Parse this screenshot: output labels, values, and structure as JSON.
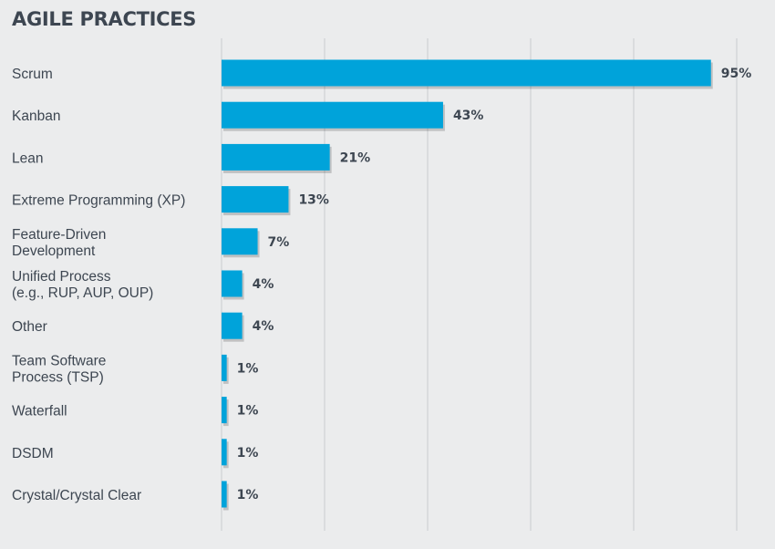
{
  "chart_data": {
    "type": "bar",
    "orientation": "horizontal",
    "title": "AGILE PRACTICES",
    "categories": [
      [
        "Scrum"
      ],
      [
        "Kanban"
      ],
      [
        "Lean"
      ],
      [
        "Extreme Programming (XP)"
      ],
      [
        "Feature-Driven",
        "Development"
      ],
      [
        "Unified Process",
        "(e.g., RUP, AUP, OUP)"
      ],
      [
        "Other"
      ],
      [
        "Team Software",
        "Process (TSP)"
      ],
      [
        "Waterfall"
      ],
      [
        "DSDM"
      ],
      [
        "Crystal/Crystal Clear"
      ]
    ],
    "values": [
      95,
      43,
      21,
      13,
      7,
      4,
      4,
      1,
      1,
      1,
      1
    ],
    "value_labels": [
      "95%",
      "43%",
      "21%",
      "13%",
      "7%",
      "4%",
      "4%",
      "1%",
      "1%",
      "1%",
      "1%"
    ],
    "xlim": [
      0,
      100
    ],
    "grid": true,
    "bar_color": "#00a3da"
  }
}
